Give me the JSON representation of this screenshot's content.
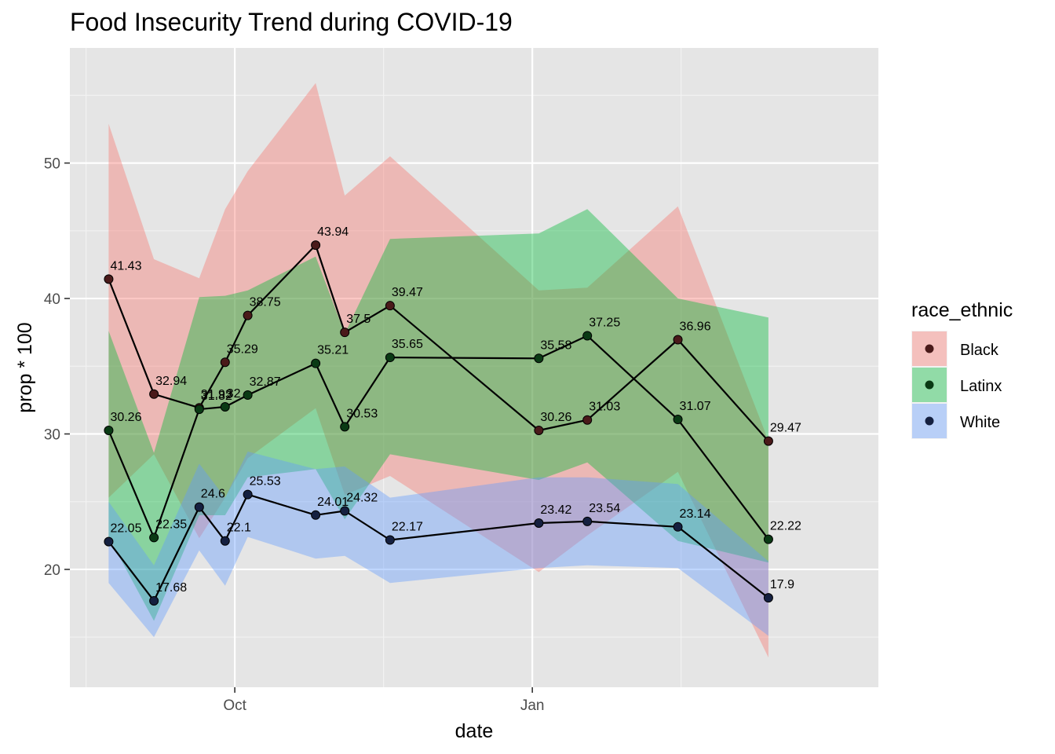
{
  "chart_data": {
    "type": "line",
    "title": "Food Insecurity Trend during COVID-19",
    "xlabel": "date",
    "ylabel": "prop * 100",
    "x_ticks": [
      {
        "date": "2020-10-01",
        "label": "Oct"
      },
      {
        "date": "2021-01-01",
        "label": "Jan"
      }
    ],
    "y_ticks": [
      20,
      30,
      40,
      50
    ],
    "xlim": [
      "2020-08-11",
      "2021-04-18"
    ],
    "ylim": [
      11.3,
      58.5
    ],
    "grid": true,
    "x": [
      "2020-08-23",
      "2020-09-06",
      "2020-09-20",
      "2020-09-28",
      "2020-10-05",
      "2020-10-26",
      "2020-11-04",
      "2020-11-18",
      "2021-01-03",
      "2021-01-18",
      "2021-02-15",
      "2021-03-15"
    ],
    "legend": {
      "title": "race_ethnic",
      "position": "right"
    },
    "series": [
      {
        "name": "Black",
        "color": "#F8766D",
        "point_color": "#4a1a1a",
        "values": [
          41.43,
          32.94,
          31.93,
          35.29,
          38.75,
          43.94,
          37.5,
          39.47,
          30.26,
          31.03,
          36.96,
          29.47
        ],
        "lower": [
          25.3,
          28.5,
          22.3,
          25.3,
          28.2,
          31.9,
          25.5,
          26.9,
          19.8,
          22.5,
          27.2,
          13.5
        ],
        "upper": [
          52.9,
          42.9,
          41.5,
          46.6,
          49.4,
          55.9,
          47.6,
          50.5,
          40.6,
          40.8,
          46.8,
          29.5
        ]
      },
      {
        "name": "Latinx",
        "color": "#00BA38",
        "point_color": "#0a3a14",
        "values": [
          30.26,
          22.35,
          31.82,
          32,
          32.87,
          35.21,
          30.53,
          35.65,
          35.58,
          37.25,
          31.07,
          22.22
        ],
        "lower": [
          22.4,
          16.2,
          24.0,
          24.0,
          26.8,
          27.4,
          23.7,
          28.5,
          26.6,
          27.9,
          22.1,
          20.5
        ],
        "upper": [
          37.6,
          28.6,
          40.1,
          40.2,
          40.6,
          43.1,
          37.4,
          44.4,
          44.8,
          46.6,
          40.0,
          38.6
        ]
      },
      {
        "name": "White",
        "color": "#619CFF",
        "point_color": "#152040",
        "values": [
          22.05,
          17.68,
          24.6,
          22.1,
          25.53,
          24.01,
          24.32,
          22.17,
          23.42,
          23.54,
          23.14,
          17.9
        ],
        "lower": [
          19.0,
          15.0,
          21.4,
          18.8,
          22.4,
          20.8,
          21.0,
          19.0,
          20.1,
          20.3,
          20.1,
          15.1
        ],
        "upper": [
          25.0,
          20.3,
          27.8,
          25.3,
          28.7,
          27.4,
          27.6,
          25.3,
          26.8,
          26.8,
          26.3,
          20.6
        ]
      }
    ]
  }
}
